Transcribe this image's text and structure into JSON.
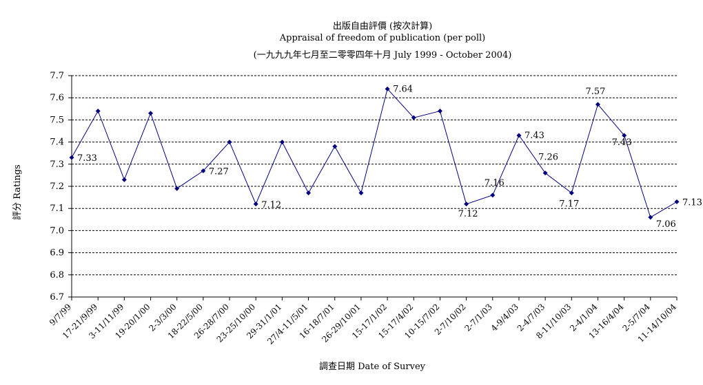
{
  "chart_data": {
    "type": "line",
    "title": "出版自由評價 (按次計算)",
    "subtitle": "Appraisal of freedom of publication (per poll)",
    "subtitle2": "(一九九九年七月至二零零四年十月 July 1999 - October 2004)",
    "xlabel": "調查日期 Date of Survey",
    "ylabel": "評分 Ratings",
    "ylim": [
      6.7,
      7.7
    ],
    "yticks": [
      "7.7",
      "7.6",
      "7.5",
      "7.4",
      "7.3",
      "7.2",
      "7.1",
      "7.0",
      "6.9",
      "6.8",
      "6.7"
    ],
    "grid": true,
    "categories": [
      "9/7/99",
      "17-21/9/99",
      "3-11/11/99",
      "19-20/1/00",
      "2-3/3/00",
      "18-22/5/00",
      "26-28/7/00",
      "23-25/10/00",
      "29-31/1/01",
      "27/4-11/5/01",
      "16-18/7/01",
      "26-29/10/01",
      "15-17/1/02",
      "15-17/4/02",
      "10-15/7/02",
      "2-7/10/02",
      "2-7/1/03",
      "4-9/4/03",
      "2-4/7/03",
      "8-11/10/03",
      "2-4/1/04",
      "13-16/4/04",
      "2-5/7/04",
      "11-14/10/04"
    ],
    "values": [
      7.33,
      7.54,
      7.23,
      7.53,
      7.19,
      7.27,
      7.4,
      7.12,
      7.4,
      7.17,
      7.38,
      7.17,
      7.64,
      7.51,
      7.54,
      7.12,
      7.16,
      7.43,
      7.26,
      7.17,
      7.57,
      7.43,
      7.06,
      7.13
    ],
    "data_labels": [
      "7.33",
      "",
      "",
      "",
      "",
      "7.27",
      "",
      "7.12",
      "",
      "",
      "",
      "",
      "7.64",
      "",
      "",
      "7.12",
      "7.16",
      "7.43",
      "7.26",
      "7.17",
      "7.57",
      "7.43",
      "7.06",
      "7.13"
    ],
    "line_color": "#00007f"
  }
}
